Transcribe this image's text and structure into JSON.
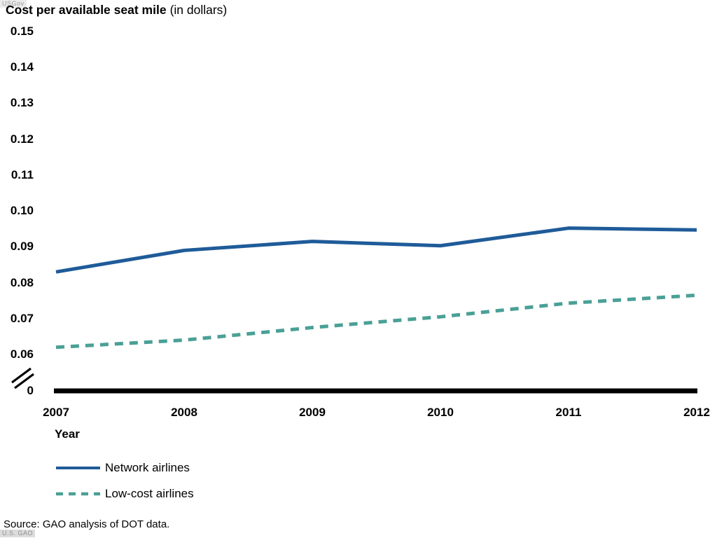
{
  "watermarks": {
    "top_left": "USGov",
    "bottom_left": "U.S. GAO"
  },
  "header": {
    "title_bold": "Cost per available seat mile",
    "title_note": "(in dollars)"
  },
  "axes": {
    "x_label": "Year",
    "zero_label": "0"
  },
  "footer": {
    "source": "Source: GAO analysis of DOT data."
  },
  "chart_data": {
    "type": "line",
    "title": "Cost per available seat mile (in dollars)",
    "xlabel": "Year",
    "ylabel": "Cost per available seat mile (dollars)",
    "x": [
      2007,
      2008,
      2009,
      2010,
      2011,
      2012
    ],
    "series": [
      {
        "name": "Network airlines",
        "color": "#1f5b99",
        "line_style": "solid",
        "values": [
          0.083,
          0.089,
          0.0915,
          0.0903,
          0.0952,
          0.0947
        ]
      },
      {
        "name": "Low-cost airlines",
        "color": "#4aa096",
        "line_style": "dashed",
        "values": [
          0.062,
          0.064,
          0.0675,
          0.0705,
          0.0743,
          0.0765
        ]
      }
    ],
    "y_ticks": [
      0.15,
      0.14,
      0.13,
      0.12,
      0.11,
      0.1,
      0.09,
      0.08,
      0.07,
      0.06
    ],
    "y_tick_labels": [
      "0.15",
      "0.14",
      "0.13",
      "0.12",
      "0.11",
      "0.10",
      "0.09",
      "0.08",
      "0.07",
      "0.06"
    ],
    "axis_break": true,
    "baseline_label": "0",
    "ylim": [
      0.06,
      0.15
    ],
    "grid": false,
    "legend_position": "bottom-left",
    "axis_color": "#000000"
  }
}
